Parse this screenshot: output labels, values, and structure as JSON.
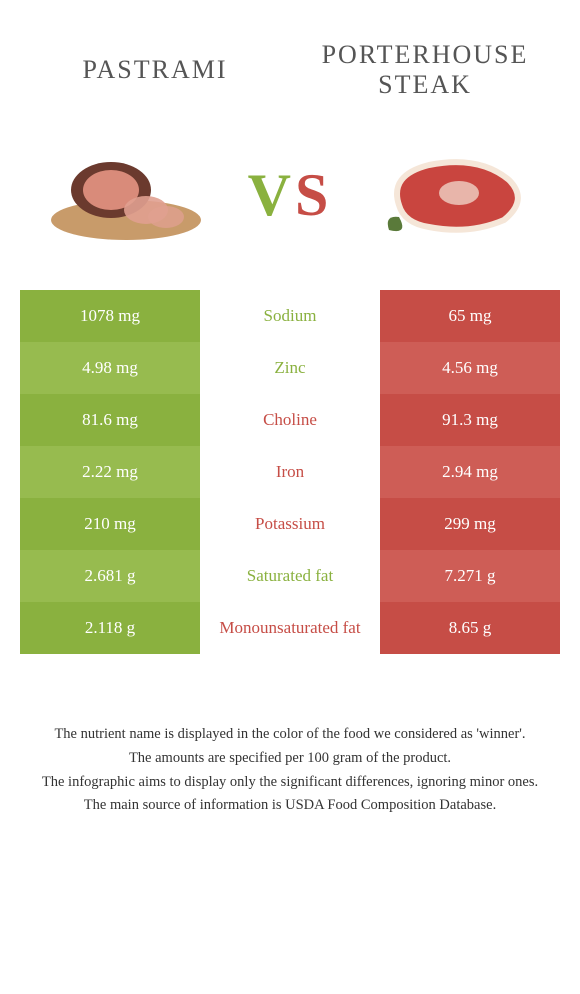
{
  "header": {
    "left_title": "pastrami",
    "right_title": "porterhouse steak",
    "vs_text": "vs"
  },
  "colors": {
    "left_bg": "#8ab13f",
    "left_alt_bg": "#97bb4f",
    "right_bg": "#c64d46",
    "right_alt_bg": "#ce5d56",
    "left_text": "#8ab13f",
    "right_text": "#c64d46",
    "vs_v_color": "#8ab13f",
    "vs_s_color": "#c64d46"
  },
  "rows": [
    {
      "left": "1078 mg",
      "label": "Sodium",
      "right": "65 mg",
      "winner": "left"
    },
    {
      "left": "4.98 mg",
      "label": "Zinc",
      "right": "4.56 mg",
      "winner": "left"
    },
    {
      "left": "81.6 mg",
      "label": "Choline",
      "right": "91.3 mg",
      "winner": "right"
    },
    {
      "left": "2.22 mg",
      "label": "Iron",
      "right": "2.94 mg",
      "winner": "right"
    },
    {
      "left": "210 mg",
      "label": "Potassium",
      "right": "299 mg",
      "winner": "right"
    },
    {
      "left": "2.681 g",
      "label": "Saturated fat",
      "right": "7.271 g",
      "winner": "left"
    },
    {
      "left": "2.118 g",
      "label": "Monounsaturated fat",
      "right": "8.65 g",
      "winner": "right"
    }
  ],
  "footnotes": [
    "The nutrient name is displayed in the color of the food we considered as 'winner'.",
    "The amounts are specified per 100 gram of the product.",
    "The infographic aims to display only the significant differences, ignoring minor ones.",
    "The main source of information is USDA Food Composition Database."
  ]
}
